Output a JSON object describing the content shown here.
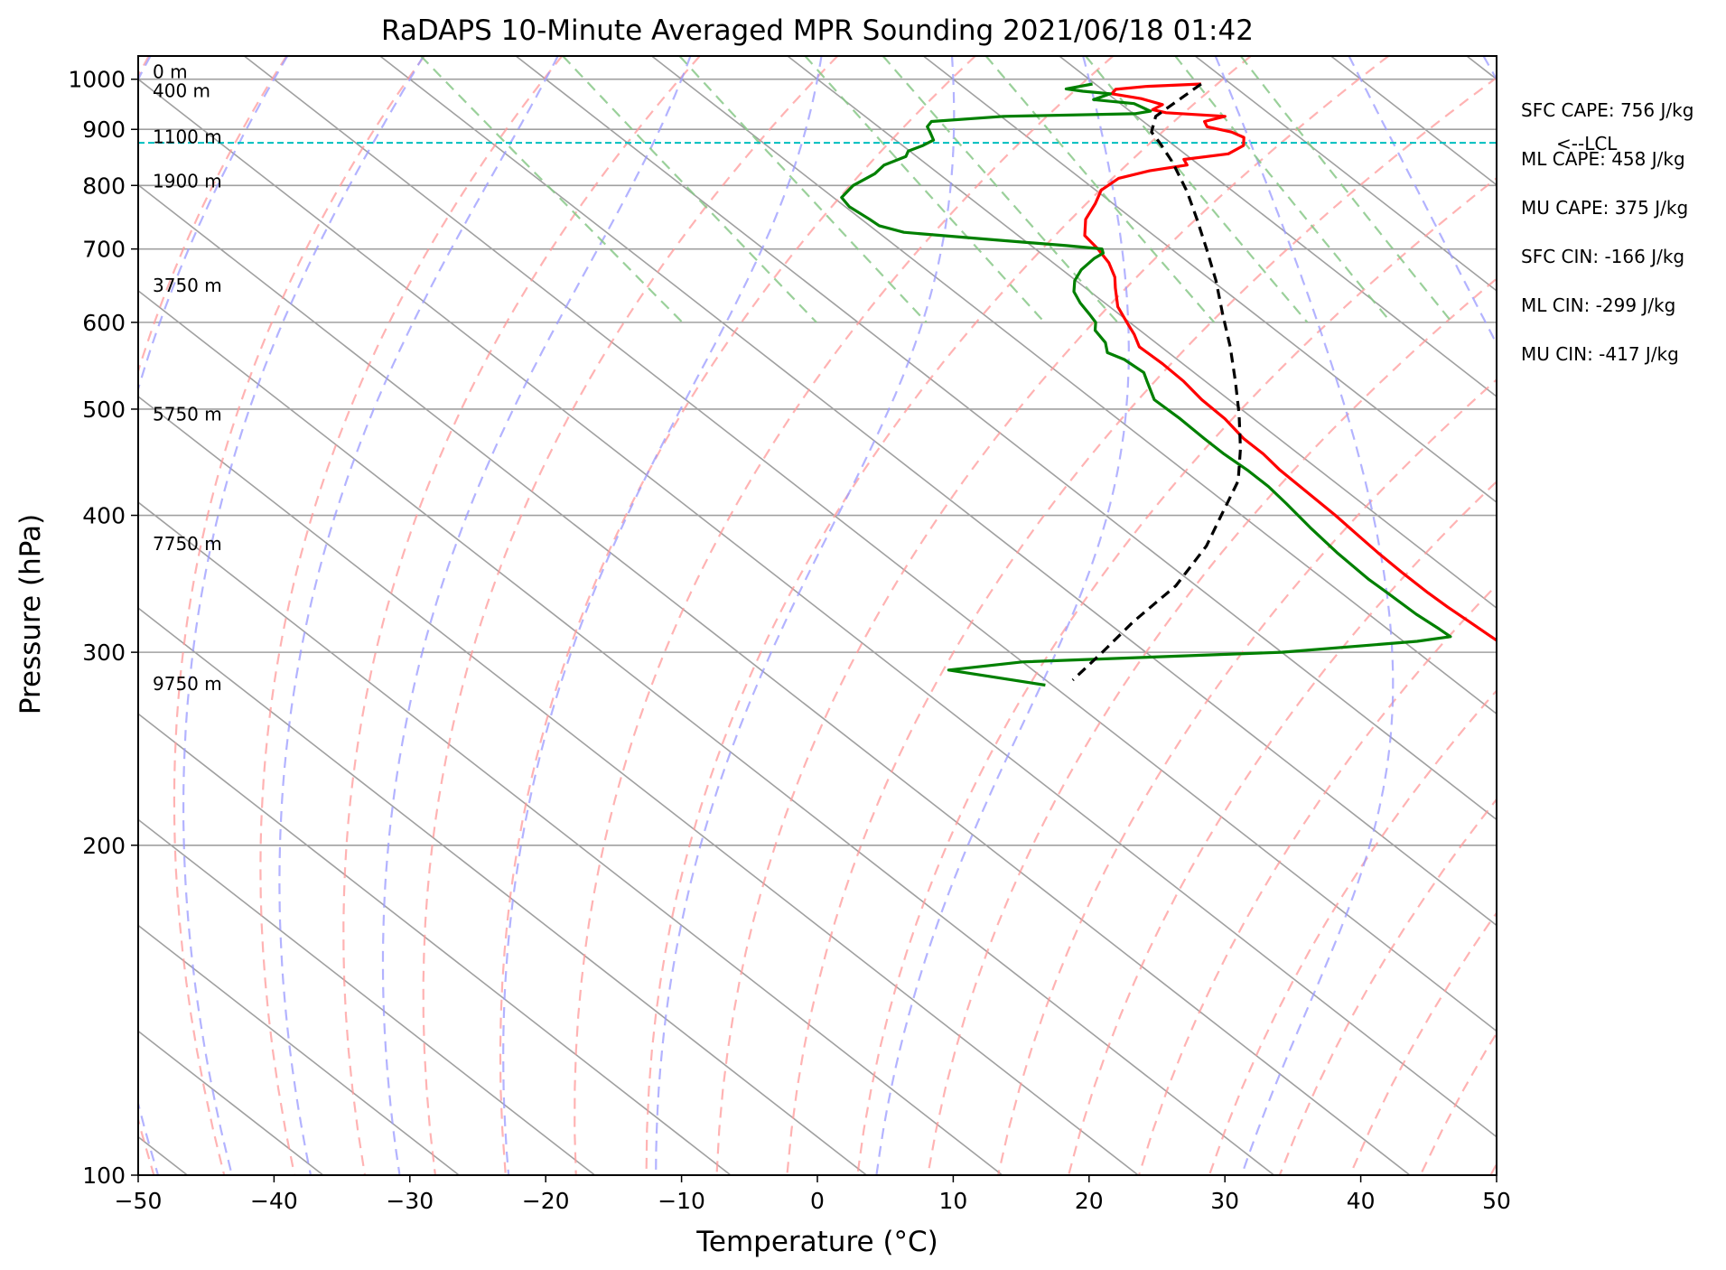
{
  "chart_data": {
    "type": "line",
    "title": "RaDAPS 10-Minute Averaged MPR Sounding 2021/06/18 01:42",
    "xlabel": "Temperature (°C)",
    "ylabel": "Pressure (hPa)",
    "xlim": [
      -50,
      50
    ],
    "ylim": [
      1050,
      100
    ],
    "y_scale": "log",
    "x_ticks": [
      "−50",
      "−40",
      "−30",
      "−20",
      "−10",
      "0",
      "10",
      "20",
      "30",
      "40",
      "50"
    ],
    "x_tick_values": [
      -50,
      -40,
      -30,
      -20,
      -10,
      0,
      10,
      20,
      30,
      40,
      50
    ],
    "y_ticks": [
      "100",
      "200",
      "300",
      "400",
      "500",
      "600",
      "700",
      "800",
      "900",
      "1000"
    ],
    "y_tick_values": [
      100,
      200,
      300,
      400,
      500,
      600,
      700,
      800,
      900,
      1000
    ],
    "skew_factor": 45,
    "grid": true,
    "colors": {
      "temperature": "#ff0000",
      "dewpoint": "#008000",
      "parcel": "#000000",
      "lcl": "#00bfbf",
      "dry_adiabat": "#ff9999",
      "moist_adiabat": "#9999ff",
      "mixing_ratio": "#88c888",
      "isotherm": "#a0a0a0"
    },
    "series": [
      {
        "key": "temperature",
        "points": [
          [
            27.8,
            990
          ],
          [
            23.5,
            985
          ],
          [
            21,
            979
          ],
          [
            20.3,
            970
          ],
          [
            22,
            960
          ],
          [
            23,
            948
          ],
          [
            21.8,
            938
          ],
          [
            22.5,
            932
          ],
          [
            26.5,
            925
          ],
          [
            24.5,
            915
          ],
          [
            24.2,
            905
          ],
          [
            25.5,
            895
          ],
          [
            25.9,
            885
          ],
          [
            25.1,
            870
          ],
          [
            23.2,
            855
          ],
          [
            19.4,
            845
          ],
          [
            19.1,
            835
          ],
          [
            15.8,
            825
          ],
          [
            12.8,
            812
          ],
          [
            10.4,
            792
          ],
          [
            8.7,
            770
          ],
          [
            6.5,
            745
          ],
          [
            4.9,
            720
          ],
          [
            4.6,
            700
          ],
          [
            4.1,
            680
          ],
          [
            3.2,
            660
          ],
          [
            2.2,
            645
          ],
          [
            0.6,
            620
          ],
          [
            -0.2,
            600
          ],
          [
            -0.8,
            585
          ],
          [
            -1.6,
            570
          ],
          [
            -1.5,
            550
          ],
          [
            -1.6,
            530
          ],
          [
            -2,
            510
          ],
          [
            -2.1,
            490
          ],
          [
            -2.6,
            470
          ],
          [
            -2.6,
            455
          ],
          [
            -2.9,
            440
          ],
          [
            -3,
            420
          ],
          [
            -3.1,
            400
          ],
          [
            -3.3,
            385
          ],
          [
            -3.5,
            370
          ],
          [
            -3.6,
            355
          ],
          [
            -3.6,
            340
          ],
          [
            -3.5,
            330
          ],
          [
            -3.3,
            320
          ],
          [
            -3,
            305
          ],
          [
            -2.9,
            295
          ],
          [
            -2.9,
            285
          ],
          [
            -3.5,
            278
          ]
        ]
      },
      {
        "key": "dewpoint",
        "points": [
          [
            19.8,
            990
          ],
          [
            17.4,
            980
          ],
          [
            18.4,
            975
          ],
          [
            20.2,
            970
          ],
          [
            18.4,
            958
          ],
          [
            21,
            950
          ],
          [
            21.5,
            935
          ],
          [
            20.1,
            930
          ],
          [
            10.2,
            925
          ],
          [
            4.4,
            915
          ],
          [
            3.6,
            905
          ],
          [
            3.3,
            895
          ],
          [
            2.8,
            880
          ],
          [
            1.5,
            870
          ],
          [
            -0.1,
            860
          ],
          [
            -0.8,
            850
          ],
          [
            -3.2,
            835
          ],
          [
            -4.7,
            820
          ],
          [
            -7.4,
            800
          ],
          [
            -9.4,
            780
          ],
          [
            -9.7,
            765
          ],
          [
            -9.4,
            745
          ],
          [
            -9.3,
            735
          ],
          [
            -8.1,
            725
          ],
          [
            -2.9,
            715
          ],
          [
            2.6,
            705
          ],
          [
            4.9,
            700
          ],
          [
            4.6,
            694
          ],
          [
            3.4,
            686
          ],
          [
            1.4,
            670
          ],
          [
            -0.1,
            655
          ],
          [
            -1.2,
            640
          ],
          [
            -1.8,
            625
          ],
          [
            -2.2,
            610
          ],
          [
            -2.5,
            600
          ],
          [
            -3.3,
            590
          ],
          [
            -3.7,
            575
          ],
          [
            -4.5,
            563
          ],
          [
            -3.9,
            555
          ],
          [
            -3.7,
            540
          ],
          [
            -4.3,
            530
          ],
          [
            -5.5,
            510
          ],
          [
            -5.4,
            490
          ],
          [
            -5.5,
            470
          ],
          [
            -5.5,
            455
          ],
          [
            -5.3,
            440
          ],
          [
            -5.3,
            425
          ],
          [
            -5.6,
            410
          ],
          [
            -6.1,
            390
          ],
          [
            -6.5,
            370
          ],
          [
            -6.7,
            350
          ],
          [
            -6.6,
            340
          ],
          [
            -6.5,
            325
          ],
          [
            -6.2,
            315
          ],
          [
            -6.1,
            310
          ],
          [
            -9,
            307
          ],
          [
            -20,
            300
          ],
          [
            -40,
            294
          ],
          [
            -46.2,
            289
          ],
          [
            -40.5,
            280
          ]
        ]
      },
      {
        "key": "parcel",
        "points": [
          [
            27.8,
            990
          ],
          [
            24.4,
            955
          ],
          [
            21.4,
            925
          ],
          [
            19.6,
            895
          ],
          [
            19.2,
            875
          ],
          [
            18.3,
            840
          ],
          [
            16.6,
            790
          ],
          [
            14.7,
            745
          ],
          [
            12.6,
            700
          ],
          [
            10.3,
            655
          ],
          [
            7.6,
            610
          ],
          [
            5.1,
            570
          ],
          [
            2.2,
            530
          ],
          [
            -0.6,
            495
          ],
          [
            -3.8,
            460
          ],
          [
            -7,
            430
          ],
          [
            -11.5,
            400
          ],
          [
            -15.5,
            375
          ],
          [
            -21.5,
            345
          ],
          [
            -28,
            320
          ],
          [
            -33.2,
            300
          ],
          [
            -38,
            283
          ]
        ]
      }
    ],
    "lcl_pressure": 875,
    "lcl_label": "<--LCL",
    "dry_adiabats_theta_K": [
      223,
      233,
      243,
      253,
      263,
      273,
      283,
      293,
      303,
      313,
      323,
      333,
      343,
      353,
      363,
      373,
      383,
      393,
      403,
      413,
      423,
      433,
      443,
      453,
      463,
      473,
      483,
      493,
      503
    ],
    "moist_adiabats_T1000_C": [
      -50,
      -40,
      -30,
      -20,
      -10,
      0,
      10,
      20,
      30,
      40,
      50
    ],
    "mixing_ratios_gkg": [
      0.4,
      1,
      2,
      4,
      6,
      10,
      16,
      24,
      32
    ],
    "height_labels": [
      {
        "text": "9750 m",
        "p": 277
      },
      {
        "text": "7750 m",
        "p": 372
      },
      {
        "text": "5750 m",
        "p": 488
      },
      {
        "text": "3750 m",
        "p": 640
      },
      {
        "text": "1900 m",
        "p": 797
      },
      {
        "text": "1100 m",
        "p": 874
      },
      {
        "text": "400 m",
        "p": 963
      },
      {
        "text": "0 m",
        "p": 1002
      }
    ],
    "annotations": [
      "SFC CAPE: 756 J/kg",
      "ML CAPE: 458 J/kg",
      "MU CAPE: 375 J/kg",
      "SFC CIN: -166 J/kg",
      "ML CIN: -299 J/kg",
      "MU CIN: -417 J/kg"
    ]
  }
}
